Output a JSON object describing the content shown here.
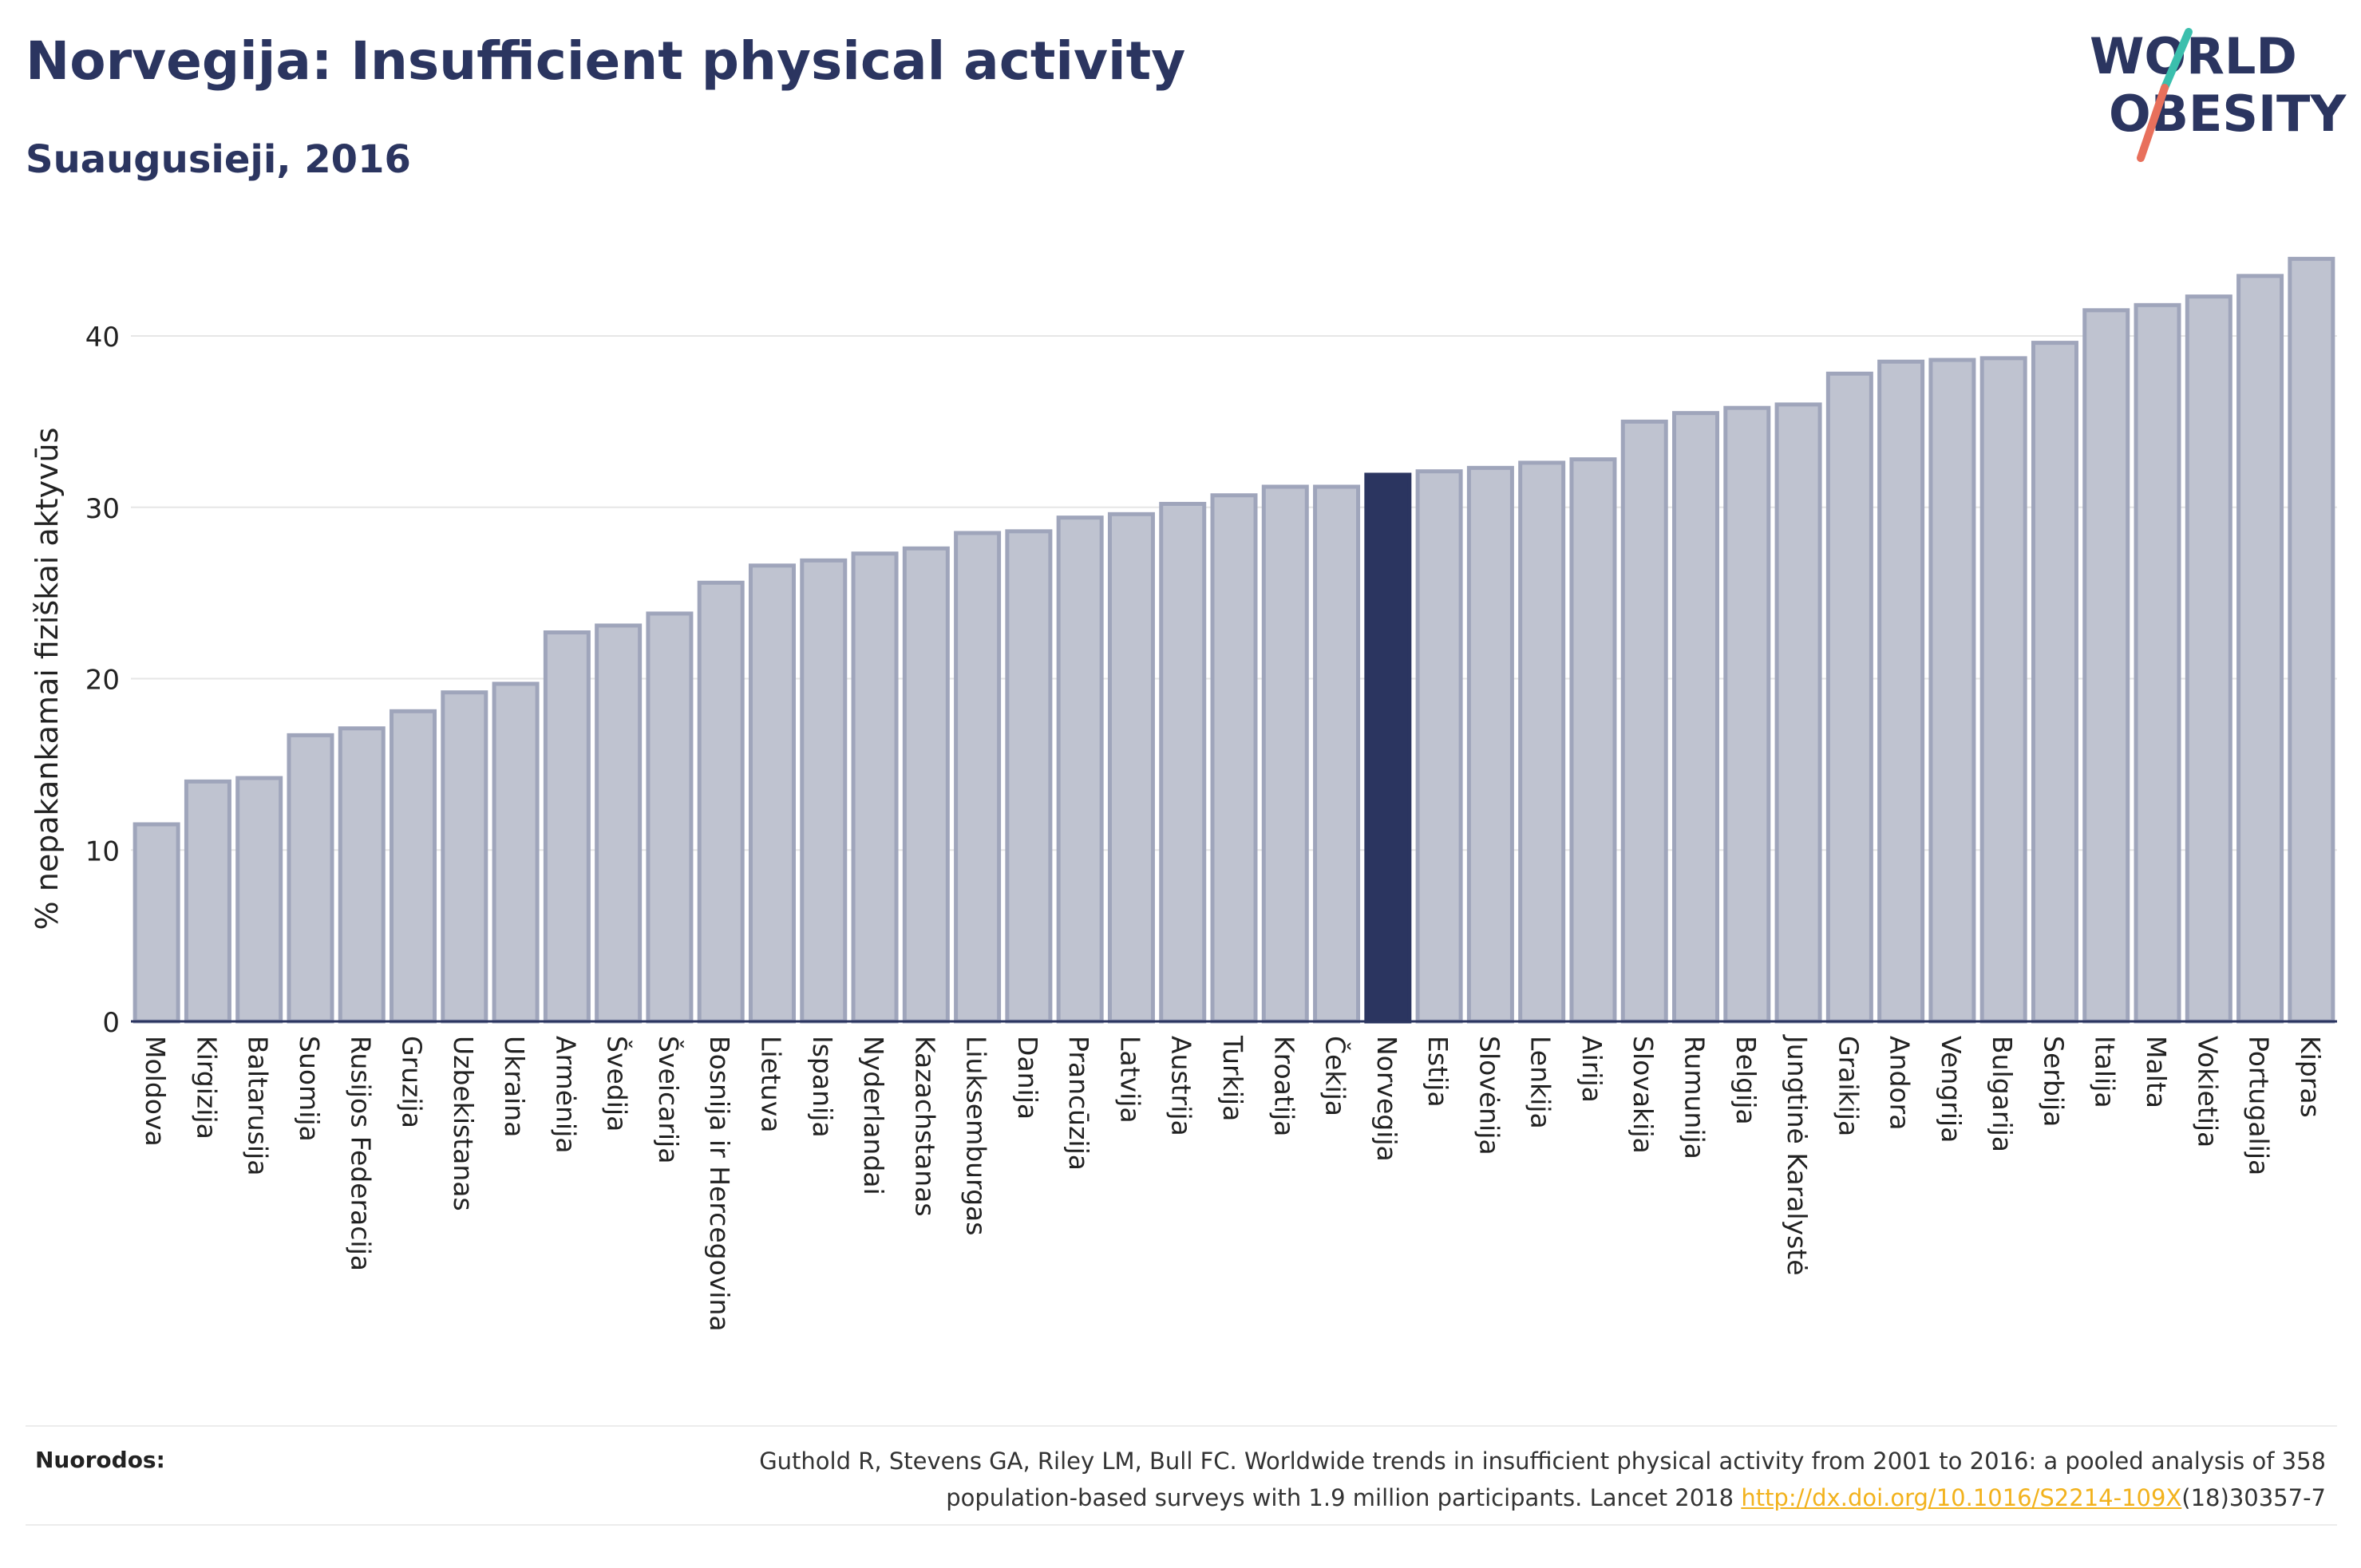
{
  "header": {
    "title": "Norvegija: Insufficient physical activity",
    "subtitle": "Suaugusieji, 2016"
  },
  "logo": {
    "line1": "WORLD",
    "line2": "OBESITY"
  },
  "footer": {
    "label": "Nuorodos:",
    "citation_line1": "Guthold R, Stevens GA, Riley LM, Bull FC. Worldwide trends in insufficient physical activity from 2001 to 2016: a pooled analysis of 358",
    "citation_line2_prefix": "population-based surveys with 1.9 million participants. Lancet 2018 ",
    "citation_link": "http://dx.doi.org/10.1016/S2214-109X",
    "citation_line2_suffix": "(18)30357-7"
  },
  "colors": {
    "bar": "#bfc3d0",
    "bar_border": "#9fa5bb",
    "highlight": "#2b3560",
    "text": "#2b3560",
    "logo_teal": "#3bbfad",
    "logo_coral": "#e8705c"
  },
  "chart_data": {
    "type": "bar",
    "ylabel": "% nepakankamai fiziškai aktyvūs",
    "ylim": [
      0,
      45
    ],
    "yticks": [
      0,
      10,
      20,
      30,
      40
    ],
    "grid": true,
    "highlight": "Norvegija",
    "categories": [
      "Moldova",
      "Kirgizija",
      "Baltarusija",
      "Suomija",
      "Rusijos Federacija",
      "Gruzija",
      "Uzbekistanas",
      "Ukraina",
      "Armėnija",
      "Švedija",
      "Šveicarija",
      "Bosnija ir Hercegovina",
      "Lietuva",
      "Ispanija",
      "Nyderlandai",
      "Kazachstanas",
      "Liuksemburgas",
      "Danija",
      "Prancūzija",
      "Latvija",
      "Austrija",
      "Turkija",
      "Kroatija",
      "Čekija",
      "Norvegija",
      "Estija",
      "Slovėnija",
      "Lenkija",
      "Airija",
      "Slovakija",
      "Rumunija",
      "Belgija",
      "Jungtinė Karalystė",
      "Graikija",
      "Andora",
      "Vengrija",
      "Bulgarija",
      "Serbija",
      "Italija",
      "Malta",
      "Vokietija",
      "Portugalija",
      "Kipras"
    ],
    "values": [
      11.5,
      14.0,
      14.2,
      16.7,
      17.1,
      18.1,
      19.2,
      19.7,
      22.7,
      23.1,
      23.8,
      25.6,
      26.6,
      26.9,
      27.3,
      27.6,
      28.5,
      28.6,
      29.4,
      29.6,
      30.2,
      30.7,
      31.2,
      31.2,
      31.9,
      32.1,
      32.3,
      32.6,
      32.8,
      35.0,
      35.5,
      35.8,
      36.0,
      37.8,
      38.5,
      38.6,
      38.7,
      39.6,
      41.5,
      41.8,
      42.3,
      43.5,
      44.5
    ]
  }
}
